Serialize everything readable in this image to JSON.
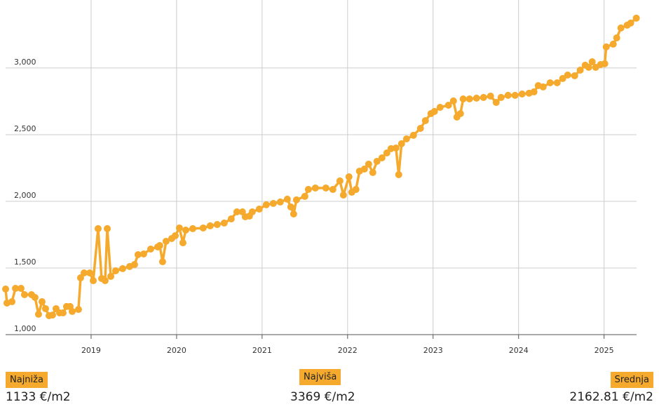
{
  "chart_data": {
    "type": "line",
    "x": [
      2018.0,
      2018.016,
      2018.074,
      2018.115,
      2018.18,
      2018.221,
      2018.303,
      2018.344,
      2018.385,
      2018.426,
      2018.467,
      2018.508,
      2018.549,
      2018.59,
      2018.631,
      2018.672,
      2018.713,
      2018.754,
      2018.779,
      2018.852,
      2018.877,
      2018.918,
      2018.984,
      2019.025,
      2019.082,
      2019.123,
      2019.164,
      2019.189,
      2019.23,
      2019.287,
      2019.369,
      2019.451,
      2019.508,
      2019.549,
      2019.615,
      2019.697,
      2019.779,
      2019.803,
      2019.836,
      2019.877,
      2019.943,
      2019.984,
      2020.033,
      2020.074,
      2020.107,
      2020.189,
      2020.311,
      2020.393,
      2020.475,
      2020.557,
      2020.639,
      2020.705,
      2020.77,
      2020.803,
      2020.852,
      2020.885,
      2020.967,
      2021.049,
      2021.131,
      2021.213,
      2021.295,
      2021.336,
      2021.369,
      2021.402,
      2021.5,
      2021.541,
      2021.623,
      2021.746,
      2021.828,
      2021.91,
      2021.951,
      2022.016,
      2022.049,
      2022.098,
      2022.139,
      2022.197,
      2022.246,
      2022.295,
      2022.344,
      2022.402,
      2022.459,
      2022.508,
      2022.566,
      2022.598,
      2022.631,
      2022.689,
      2022.77,
      2022.852,
      2022.91,
      2022.975,
      2023.016,
      2023.082,
      2023.18,
      2023.238,
      2023.279,
      2023.32,
      2023.352,
      2023.426,
      2023.508,
      2023.59,
      2023.672,
      2023.738,
      2023.795,
      2023.877,
      2023.959,
      2024.041,
      2024.123,
      2024.18,
      2024.23,
      2024.287,
      2024.369,
      2024.451,
      2024.516,
      2024.574,
      2024.656,
      2024.721,
      2024.779,
      2024.82,
      2024.861,
      2024.902,
      2024.959,
      2025.008,
      2025.025,
      2025.107,
      2025.148,
      2025.197,
      2025.27,
      2025.311,
      2025.377
    ],
    "series": [
      {
        "color": "#f5aa2e",
        "values": [
          1342,
          1237,
          1247,
          1347,
          1347,
          1300,
          1300,
          1279,
          1153,
          1247,
          1195,
          1142,
          1147,
          1195,
          1163,
          1163,
          1211,
          1211,
          1174,
          1189,
          1426,
          1463,
          1463,
          1405,
          1795,
          1421,
          1405,
          1795,
          1437,
          1479,
          1495,
          1511,
          1526,
          1600,
          1605,
          1642,
          1658,
          1668,
          1547,
          1700,
          1721,
          1742,
          1800,
          1689,
          1784,
          1795,
          1800,
          1816,
          1826,
          1837,
          1868,
          1921,
          1921,
          1884,
          1889,
          1921,
          1942,
          1974,
          1984,
          1995,
          2016,
          1958,
          1905,
          2011,
          2037,
          2089,
          2100,
          2100,
          2089,
          2153,
          2047,
          2184,
          2068,
          2089,
          2226,
          2242,
          2279,
          2216,
          2300,
          2326,
          2363,
          2395,
          2400,
          2200,
          2432,
          2468,
          2495,
          2547,
          2605,
          2658,
          2674,
          2705,
          2721,
          2753,
          2632,
          2658,
          2768,
          2768,
          2774,
          2779,
          2789,
          2742,
          2779,
          2795,
          2795,
          2805,
          2811,
          2821,
          2868,
          2858,
          2889,
          2889,
          2921,
          2947,
          2942,
          2984,
          3021,
          3005,
          3047,
          3005,
          3026,
          3032,
          3158,
          3179,
          3226,
          3300,
          3321,
          3337,
          3374
        ]
      }
    ],
    "xlim": [
      2018,
      2025.38
    ],
    "xticks": [
      2019,
      2020,
      2021,
      2022,
      2023,
      2024,
      2025
    ],
    "ylim": [
      1000,
      3510
    ],
    "yticks": [
      {
        "value": 1000,
        "label": "1,000"
      },
      {
        "value": 1500,
        "label": "1,500"
      },
      {
        "value": 2000,
        "label": "2,000"
      },
      {
        "value": 2500,
        "label": "2,500"
      },
      {
        "value": 3000,
        "label": "3,000"
      }
    ],
    "grid": true
  },
  "summary": [
    {
      "label": "Najniža",
      "value": "1133 €/m2"
    },
    {
      "label": "Najviša",
      "value": "3369 €/m2"
    },
    {
      "label": "Srednja",
      "value": "2162.81 €/m2"
    }
  ]
}
